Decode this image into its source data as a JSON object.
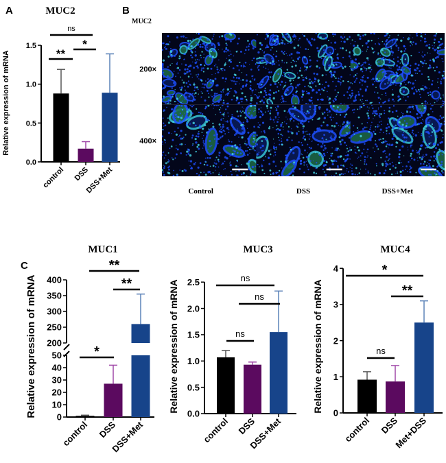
{
  "panel_labels": {
    "a": "A",
    "b": "B",
    "c": "C"
  },
  "panel_b": {
    "title": "MUC2",
    "row_labels": [
      "200×",
      "400×"
    ],
    "column_labels": [
      "Control",
      "DSS",
      "DSS+Met"
    ],
    "colors": {
      "background": "#03061a",
      "nuclei": "#1e50ff",
      "mucin": "#2fd39a"
    }
  },
  "colors": {
    "control": "#000000",
    "DSS": "#5b0a5f",
    "DSS+Met": "#17448a",
    "DSS_err": "#a048a8",
    "Met_err": "#5b82b8"
  },
  "chart_data": [
    {
      "type": "bar",
      "title": "MUC2",
      "ylabel": "Relative expression of mRNA",
      "categories": [
        "control",
        "DSS",
        "DSS+Met"
      ],
      "values": [
        0.88,
        0.17,
        0.89
      ],
      "error_upper": [
        0.31,
        0.09,
        0.5
      ],
      "ylim": [
        0,
        1.5
      ],
      "yticks": [
        "0.0",
        "0.5",
        "1.0",
        "1.5"
      ],
      "significance": [
        {
          "pair": [
            "control",
            "DSS+Met"
          ],
          "label": "ns"
        },
        {
          "pair": [
            "DSS",
            "DSS+Met"
          ],
          "label": "*"
        },
        {
          "pair": [
            "control",
            "DSS"
          ],
          "label": "**"
        }
      ]
    },
    {
      "type": "bar",
      "title": "MUC1",
      "ylabel": "Relative expression of mRNA",
      "categories": [
        "control",
        "DSS",
        "DSS+Met"
      ],
      "values": [
        1,
        27,
        260
      ],
      "error_upper": [
        0.5,
        15,
        95
      ],
      "ylim": [
        0,
        400
      ],
      "axis_break": [
        50,
        200
      ],
      "yticks": [
        "0",
        "10",
        "20",
        "30",
        "40",
        "50",
        "200",
        "250",
        "300",
        "350",
        "400"
      ],
      "significance": [
        {
          "pair": [
            "control",
            "DSS+Met"
          ],
          "label": "**"
        },
        {
          "pair": [
            "DSS",
            "DSS+Met"
          ],
          "label": "**"
        },
        {
          "pair": [
            "control",
            "DSS"
          ],
          "label": "*"
        }
      ]
    },
    {
      "type": "bar",
      "title": "MUC3",
      "ylabel": "Relative expression of mRNA",
      "categories": [
        "control",
        "DSS",
        "DSS+Met"
      ],
      "values": [
        1.07,
        0.93,
        1.55
      ],
      "error_upper": [
        0.13,
        0.05,
        0.78
      ],
      "ylim": [
        0,
        2.5
      ],
      "yticks": [
        "0.0",
        "0.5",
        "1.0",
        "1.5",
        "2.0",
        "2.5"
      ],
      "significance": [
        {
          "pair": [
            "control",
            "DSS+Met"
          ],
          "label": "ns"
        },
        {
          "pair": [
            "DSS",
            "DSS+Met"
          ],
          "label": "ns"
        },
        {
          "pair": [
            "control",
            "DSS"
          ],
          "label": "ns"
        }
      ]
    },
    {
      "type": "bar",
      "title": "MUC4",
      "ylabel": "Relative expression of mRNA",
      "categories": [
        "control",
        "DSS",
        "Met+DSS"
      ],
      "values": [
        0.92,
        0.87,
        2.5
      ],
      "error_upper": [
        0.22,
        0.44,
        0.6
      ],
      "ylim": [
        0,
        4
      ],
      "yticks": [
        "0",
        "1",
        "2",
        "3",
        "4"
      ],
      "significance": [
        {
          "pair": [
            "control",
            "Met+DSS"
          ],
          "label": "*"
        },
        {
          "pair": [
            "DSS",
            "Met+DSS"
          ],
          "label": "**"
        },
        {
          "pair": [
            "control",
            "DSS"
          ],
          "label": "ns"
        }
      ]
    }
  ]
}
